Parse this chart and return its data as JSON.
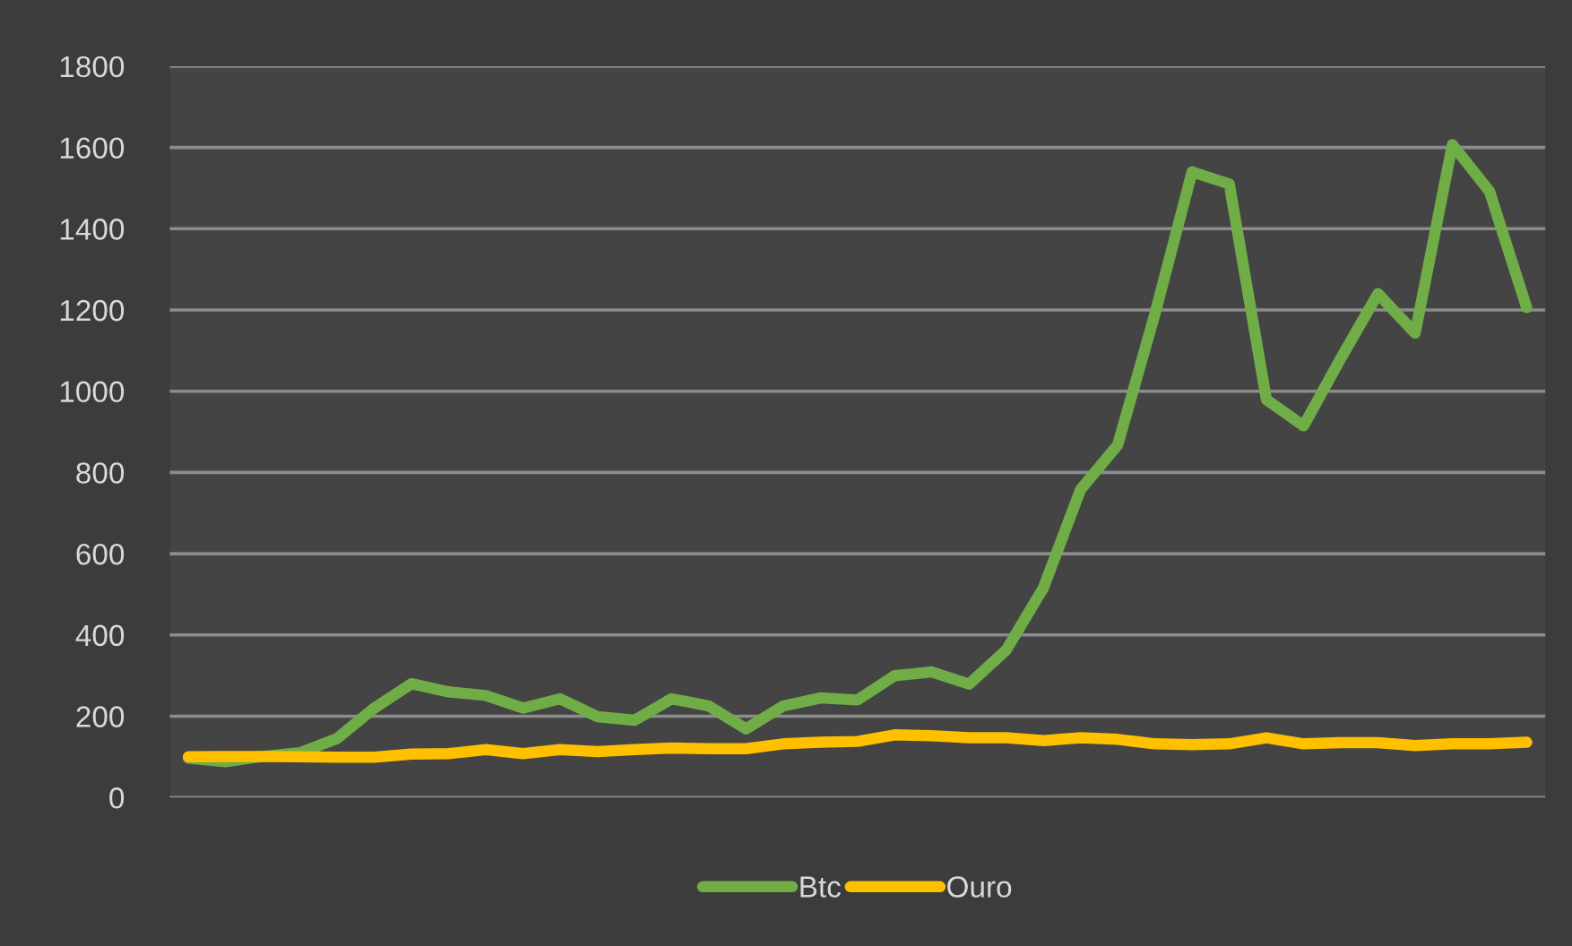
{
  "chart_data": {
    "type": "line",
    "categories": [
      null,
      null,
      null,
      null,
      null,
      null,
      null,
      null,
      null,
      null,
      null,
      null,
      null,
      null,
      null,
      null,
      null,
      null,
      null,
      null,
      null,
      null,
      null,
      null,
      null,
      null,
      null,
      null,
      null,
      null,
      null,
      null,
      null,
      null,
      null,
      null,
      null
    ],
    "series": [
      {
        "name": "Btc",
        "color": "#70ad47",
        "values": [
          97,
          88,
          101,
          110,
          145,
          220,
          280,
          260,
          251,
          220,
          243,
          199,
          190,
          243,
          225,
          169,
          225,
          245,
          240,
          300,
          309,
          279,
          363,
          516,
          758,
          868,
          1190,
          1540,
          1510,
          979,
          915,
          1081,
          1240,
          1143,
          1607,
          1492,
          1206
        ]
      },
      {
        "name": "Ouro",
        "color": "#ffc000",
        "values": [
          100,
          101,
          101,
          100,
          99,
          99,
          107,
          108,
          118,
          108,
          118,
          113,
          118,
          122,
          120,
          120,
          132,
          136,
          138,
          154,
          152,
          147,
          147,
          140,
          147,
          143,
          132,
          130,
          132,
          147,
          132,
          135,
          135,
          128,
          132,
          132,
          136
        ]
      }
    ],
    "ylim": [
      0,
      1800
    ],
    "yticks": [
      0,
      200,
      400,
      600,
      800,
      1000,
      1200,
      1400,
      1600,
      1800
    ],
    "grid": "y",
    "legend": "bottom",
    "marker": "none",
    "line_style": "solid"
  }
}
